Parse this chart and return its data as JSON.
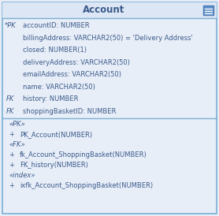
{
  "title": "Account",
  "title_fontsize": 8.5,
  "title_fontweight": "bold",
  "bg_outer": "#e8eef8",
  "bg_header": "#dce6f4",
  "bg_body": "#e8eef8",
  "border_color": "#7bafd4",
  "text_color": "#3a5a8a",
  "icon_bg": "#5b8fc7",
  "attributes": [
    {
      "prefix": "*PK",
      "text": "accountID: NUMBER"
    },
    {
      "prefix": "",
      "text": "billingAddress: VARCHAR2(50) = 'Delivery Address'"
    },
    {
      "prefix": "",
      "text": "closed: NUMBER(1)"
    },
    {
      "prefix": "",
      "text": "deliveryAddress: VARCHAR2(50)"
    },
    {
      "prefix": "",
      "text": "emailAddress: VARCHAR2(50)"
    },
    {
      "prefix": "",
      "text": "name: VARCHAR2(50)"
    },
    {
      "prefix": "FK",
      "text": "history: NUMBER"
    },
    {
      "prefix": "FK",
      "text": "shoppingBasketID: NUMBER"
    }
  ],
  "methods": [
    {
      "type": "section",
      "label": "«PK»"
    },
    {
      "type": "method",
      "prefix": "+",
      "text": "PK_Account(NUMBER)"
    },
    {
      "type": "section",
      "label": "«FK»"
    },
    {
      "type": "method",
      "prefix": "+",
      "text": "fk_Account_ShoppingBasket(NUMBER)"
    },
    {
      "type": "method",
      "prefix": "+",
      "text": "FK_history(NUMBER)"
    },
    {
      "type": "section",
      "label": "«index»"
    },
    {
      "type": "method",
      "prefix": "+",
      "text": "ixfk_Account_ShoppingBasket(NUMBER)"
    }
  ]
}
